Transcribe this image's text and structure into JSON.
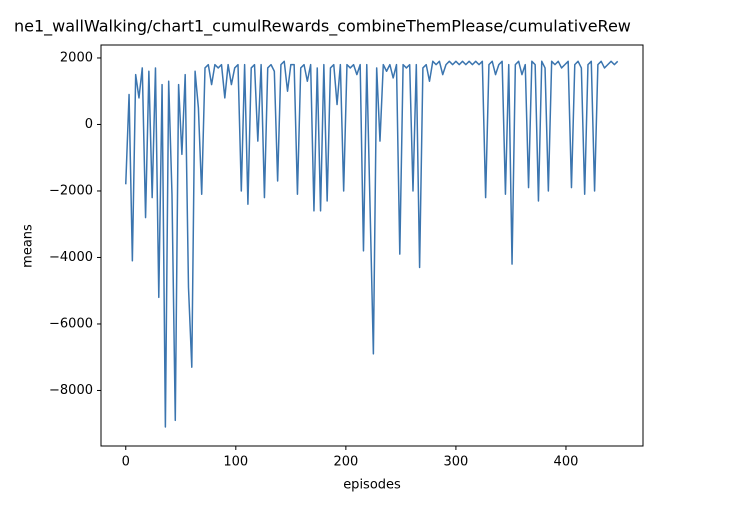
{
  "chart_data": {
    "type": "line",
    "title": "ne1_wallWalking/chart1_cumulRewards_combineThemPlease/cumulativeRew",
    "x_label": "episodes",
    "y_label": "means",
    "xlim": [
      -22.5,
      470
    ],
    "xticks": [
      0,
      100,
      200,
      300,
      400
    ],
    "ylim": [
      -9670,
      2390
    ],
    "yticks": [
      {
        "value": -8000,
        "label": "−8000"
      },
      {
        "value": -6000,
        "label": "−6000"
      },
      {
        "value": -4000,
        "label": "−4000"
      },
      {
        "value": -2000,
        "label": "−2000"
      },
      0,
      2000
    ],
    "grid": false,
    "x": [
      0,
      3,
      6,
      9,
      12,
      15,
      18,
      21,
      24,
      27,
      30,
      33,
      36,
      39,
      42,
      45,
      48,
      51,
      54,
      57,
      60,
      63,
      66,
      69,
      72,
      75,
      78,
      81,
      84,
      87,
      90,
      93,
      96,
      99,
      102,
      105,
      108,
      111,
      114,
      117,
      120,
      123,
      126,
      129,
      132,
      135,
      138,
      141,
      144,
      147,
      150,
      153,
      156,
      159,
      162,
      165,
      168,
      171,
      174,
      177,
      180,
      183,
      186,
      189,
      192,
      195,
      198,
      201,
      204,
      207,
      210,
      213,
      216,
      219,
      222,
      225,
      228,
      231,
      234,
      237,
      240,
      243,
      246,
      249,
      252,
      255,
      258,
      261,
      264,
      267,
      270,
      273,
      276,
      279,
      282,
      285,
      288,
      291,
      294,
      297,
      300,
      303,
      306,
      309,
      312,
      315,
      318,
      321,
      324,
      327,
      330,
      333,
      336,
      339,
      342,
      345,
      348,
      351,
      354,
      357,
      360,
      363,
      366,
      369,
      372,
      375,
      378,
      381,
      384,
      387,
      390,
      393,
      396,
      399,
      402,
      405,
      408,
      411,
      414,
      417,
      420,
      423,
      426,
      429,
      432,
      435,
      438,
      441,
      444,
      447
    ],
    "series": [
      {
        "name": "means",
        "color": "#3b75af",
        "values": [
          -1800,
          900,
          -4100,
          1500,
          800,
          1700,
          -2800,
          1600,
          -2200,
          1700,
          -5200,
          1200,
          -9100,
          1300,
          -2100,
          -8900,
          1200,
          -900,
          1500,
          -4900,
          -7300,
          1600,
          500,
          -2100,
          1700,
          1800,
          1200,
          1800,
          1700,
          1800,
          800,
          1800,
          1200,
          1700,
          1800,
          -2000,
          1800,
          -2400,
          1700,
          1800,
          -500,
          1800,
          -2200,
          1700,
          1800,
          1600,
          -1700,
          1800,
          1900,
          1000,
          1800,
          1800,
          -2100,
          1700,
          1800,
          1300,
          1800,
          -2600,
          1700,
          -2600,
          1800,
          -2300,
          1700,
          1800,
          600,
          1800,
          -2000,
          1800,
          1700,
          1800,
          1500,
          1800,
          -3800,
          1800,
          -2500,
          -6900,
          1700,
          -500,
          1800,
          1600,
          1800,
          1400,
          1800,
          -3900,
          1800,
          1700,
          1800,
          -2000,
          1800,
          -4300,
          1700,
          1800,
          1300,
          1900,
          1800,
          1900,
          1500,
          1800,
          1900,
          1800,
          1900,
          1800,
          1900,
          1800,
          1900,
          1800,
          1900,
          1800,
          1900,
          -2200,
          1800,
          1900,
          1500,
          1800,
          1900,
          -2100,
          1800,
          -4200,
          1800,
          1900,
          1500,
          1800,
          -1900,
          1900,
          1800,
          -2300,
          1900,
          1700,
          -2000,
          1900,
          1800,
          1900,
          1700,
          1800,
          1900,
          -1900,
          1800,
          1900,
          1700,
          -2100,
          1800,
          1900,
          -2000,
          1800,
          1900,
          1700,
          1800,
          1900,
          1800,
          1900
        ]
      }
    ]
  }
}
